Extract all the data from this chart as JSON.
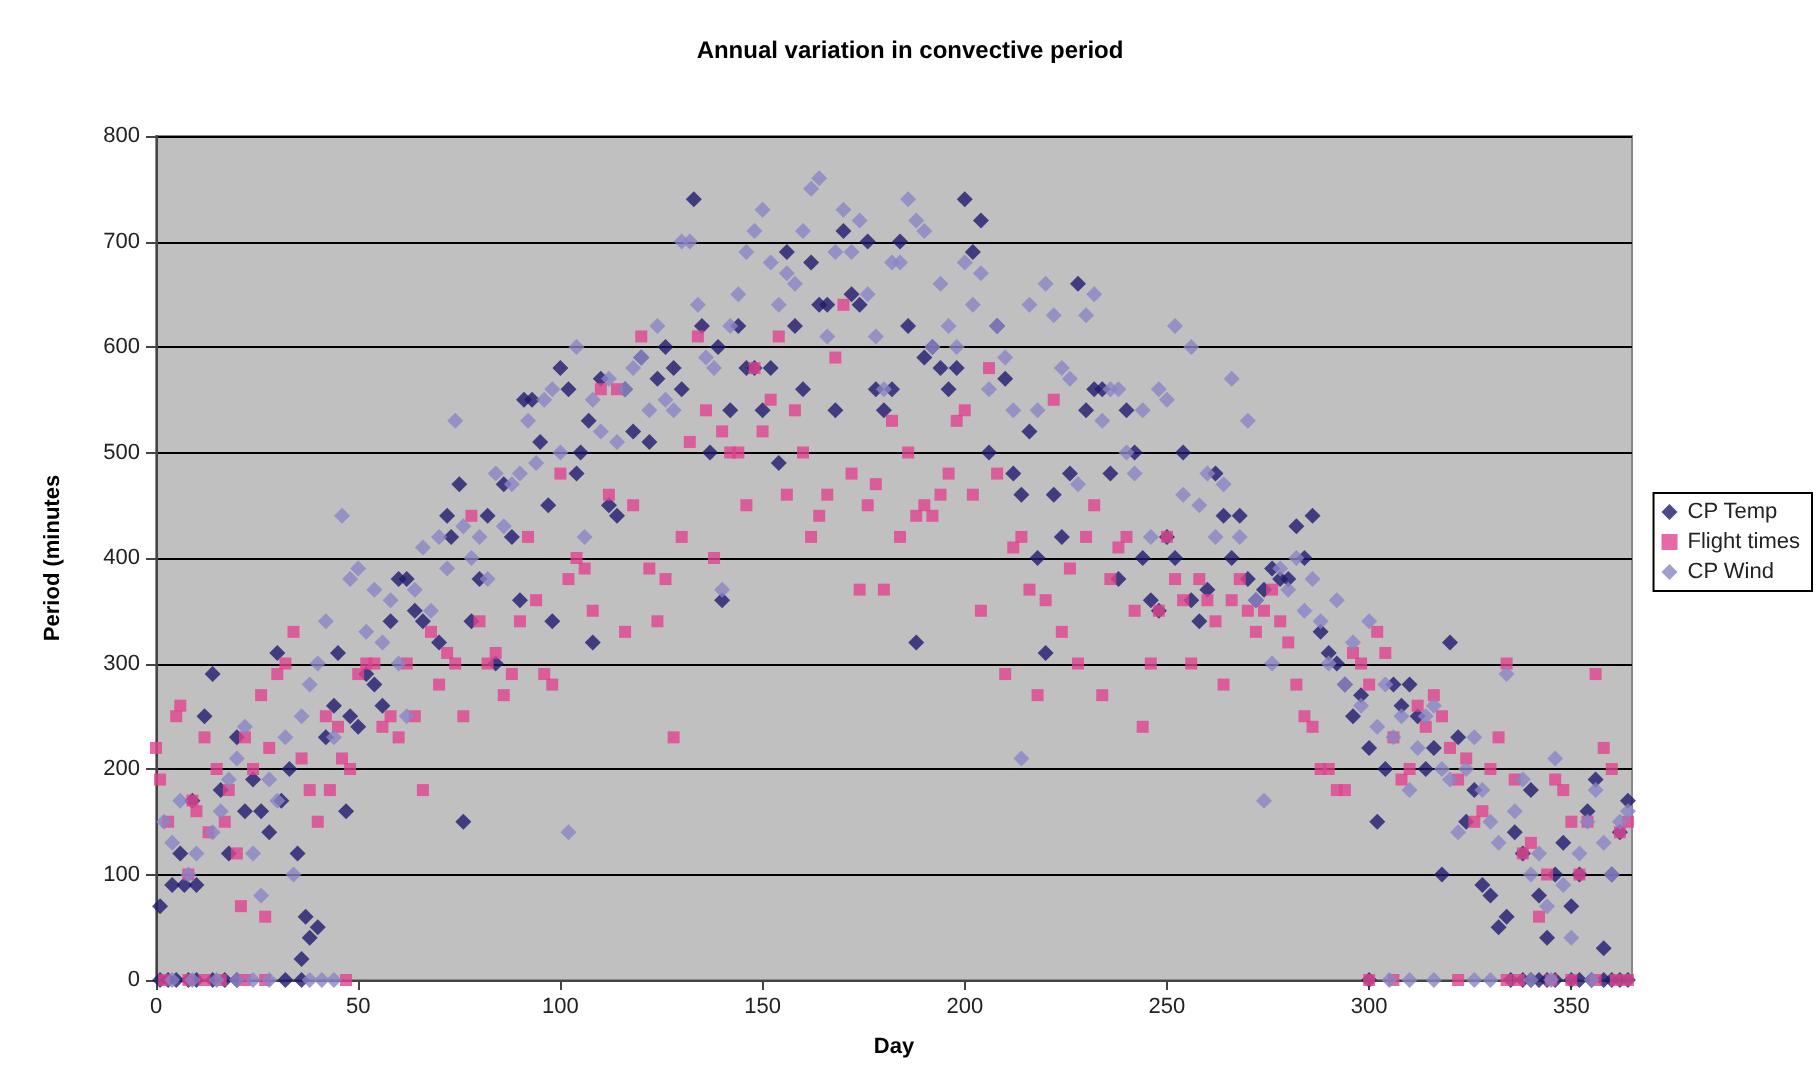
{
  "chart_data": {
    "type": "scatter",
    "title": "Annual variation in convective period",
    "xlabel": "Day",
    "ylabel": "Period (minutes",
    "xlim": [
      0,
      365
    ],
    "xticks": [
      0,
      50,
      100,
      150,
      200,
      250,
      300,
      350
    ],
    "ylim": [
      0,
      800
    ],
    "yticks": [
      0,
      100,
      200,
      300,
      400,
      500,
      600,
      700,
      800
    ],
    "grid": "y",
    "legend": "right",
    "series": [
      {
        "name": "CP Temp",
        "color": "#1f1a6e",
        "marker": "diamond",
        "x": [
          1,
          3,
          5,
          8,
          10,
          14,
          17,
          20,
          32,
          36,
          1,
          4,
          6,
          7,
          9,
          10,
          12,
          14,
          16,
          18,
          20,
          22,
          24,
          26,
          28,
          30,
          31,
          33,
          35,
          36,
          37,
          38,
          40,
          42,
          44,
          45,
          47,
          48,
          50,
          52,
          54,
          56,
          58,
          60,
          62,
          64,
          66,
          70,
          72,
          73,
          75,
          76,
          78,
          80,
          82,
          84,
          86,
          88,
          90,
          91,
          93,
          95,
          97,
          98,
          100,
          102,
          104,
          105,
          107,
          108,
          110,
          112,
          114,
          116,
          118,
          120,
          122,
          124,
          126,
          128,
          130,
          133,
          135,
          137,
          139,
          140,
          142,
          144,
          146,
          148,
          150,
          152,
          154,
          156,
          158,
          160,
          162,
          164,
          166,
          168,
          170,
          172,
          174,
          176,
          178,
          180,
          182,
          184,
          186,
          188,
          190,
          192,
          194,
          196,
          198,
          200,
          202,
          204,
          206,
          208,
          210,
          212,
          214,
          216,
          218,
          220,
          222,
          224,
          226,
          228,
          230,
          232,
          234,
          236,
          238,
          240,
          242,
          244,
          246,
          248,
          250,
          252,
          254,
          256,
          258,
          260,
          262,
          264,
          266,
          268,
          270,
          272,
          274,
          276,
          278,
          280,
          282,
          284,
          286,
          288,
          290,
          292,
          294,
          296,
          298,
          300,
          302,
          304,
          306,
          308,
          310,
          312,
          314,
          316,
          318,
          320,
          322,
          324,
          326,
          328,
          330,
          332,
          334,
          336,
          338,
          340,
          342,
          344,
          346,
          348,
          350,
          352,
          354,
          356,
          358,
          360,
          362,
          364,
          300,
          335,
          338,
          340,
          342,
          344,
          346,
          350,
          352,
          355,
          358,
          360,
          362,
          364
        ],
        "values": [
          0,
          0,
          0,
          0,
          0,
          0,
          0,
          0,
          0,
          0,
          70,
          90,
          120,
          90,
          170,
          90,
          250,
          290,
          180,
          120,
          230,
          160,
          190,
          160,
          140,
          310,
          170,
          200,
          120,
          20,
          60,
          40,
          50,
          230,
          260,
          310,
          160,
          250,
          240,
          290,
          280,
          260,
          340,
          380,
          380,
          350,
          340,
          320,
          440,
          420,
          470,
          150,
          340,
          380,
          440,
          300,
          470,
          420,
          360,
          550,
          550,
          510,
          450,
          340,
          580,
          560,
          480,
          500,
          530,
          320,
          570,
          450,
          440,
          560,
          520,
          590,
          510,
          570,
          600,
          580,
          560,
          740,
          620,
          500,
          600,
          360,
          540,
          620,
          580,
          580,
          540,
          580,
          490,
          690,
          620,
          560,
          680,
          640,
          640,
          540,
          710,
          650,
          640,
          700,
          560,
          540,
          560,
          700,
          620,
          320,
          590,
          600,
          580,
          560,
          580,
          740,
          690,
          720,
          500,
          620,
          570,
          480,
          460,
          520,
          400,
          310,
          460,
          420,
          480,
          660,
          540,
          560,
          560,
          480,
          380,
          540,
          500,
          400,
          360,
          350,
          420,
          400,
          500,
          360,
          340,
          370,
          480,
          440,
          400,
          440,
          380,
          360,
          370,
          390,
          380,
          380,
          430,
          400,
          440,
          330,
          310,
          300,
          280,
          250,
          270,
          220,
          150,
          200,
          280,
          260,
          280,
          250,
          200,
          220,
          100,
          320,
          230,
          150,
          180,
          90,
          80,
          50,
          60,
          140,
          120,
          180,
          80,
          40,
          100,
          130,
          70,
          100,
          160,
          190,
          30,
          100,
          140,
          170,
          0,
          0,
          0,
          0,
          0,
          0,
          0,
          0,
          0,
          0,
          0,
          0,
          0,
          0
        ]
      },
      {
        "name": "Flight times",
        "color": "#e0438f",
        "marker": "square",
        "x": [
          2,
          8,
          12,
          16,
          22,
          27,
          47,
          300,
          306,
          322,
          334,
          337,
          345,
          350,
          356,
          361,
          364,
          0,
          1,
          3,
          5,
          6,
          8,
          9,
          10,
          12,
          13,
          15,
          17,
          18,
          20,
          21,
          22,
          24,
          26,
          27,
          28,
          30,
          32,
          34,
          36,
          38,
          40,
          42,
          43,
          45,
          46,
          48,
          50,
          52,
          54,
          56,
          58,
          60,
          62,
          64,
          66,
          68,
          70,
          72,
          74,
          76,
          78,
          80,
          82,
          84,
          86,
          88,
          90,
          92,
          94,
          96,
          98,
          100,
          102,
          104,
          106,
          108,
          110,
          112,
          114,
          116,
          118,
          120,
          122,
          124,
          126,
          128,
          130,
          132,
          134,
          136,
          138,
          140,
          142,
          144,
          146,
          148,
          150,
          152,
          154,
          156,
          158,
          160,
          162,
          164,
          166,
          168,
          170,
          172,
          174,
          176,
          178,
          180,
          182,
          184,
          186,
          188,
          190,
          192,
          194,
          196,
          198,
          200,
          202,
          204,
          206,
          208,
          210,
          212,
          214,
          216,
          218,
          220,
          222,
          224,
          226,
          228,
          230,
          232,
          234,
          236,
          238,
          240,
          242,
          244,
          246,
          248,
          250,
          252,
          254,
          256,
          258,
          260,
          262,
          264,
          266,
          268,
          270,
          272,
          274,
          276,
          278,
          280,
          282,
          284,
          286,
          288,
          290,
          292,
          294,
          296,
          298,
          300,
          302,
          304,
          306,
          308,
          310,
          312,
          314,
          316,
          318,
          320,
          322,
          324,
          326,
          328,
          330,
          332,
          334,
          336,
          338,
          340,
          342,
          344,
          346,
          348,
          350,
          352,
          354,
          356,
          358,
          360,
          362,
          364
        ],
        "values": [
          0,
          0,
          0,
          0,
          0,
          0,
          0,
          0,
          0,
          0,
          0,
          0,
          0,
          0,
          0,
          0,
          0,
          220,
          190,
          150,
          250,
          260,
          100,
          170,
          160,
          230,
          140,
          200,
          150,
          180,
          120,
          70,
          230,
          200,
          270,
          60,
          220,
          290,
          300,
          330,
          210,
          180,
          150,
          250,
          180,
          240,
          210,
          200,
          290,
          300,
          300,
          240,
          250,
          230,
          300,
          250,
          180,
          330,
          280,
          310,
          300,
          250,
          440,
          340,
          300,
          310,
          270,
          290,
          340,
          420,
          360,
          290,
          280,
          480,
          380,
          400,
          390,
          350,
          560,
          460,
          560,
          330,
          450,
          610,
          390,
          340,
          380,
          230,
          420,
          510,
          610,
          540,
          400,
          520,
          500,
          500,
          450,
          580,
          520,
          550,
          610,
          460,
          540,
          500,
          420,
          440,
          460,
          590,
          640,
          480,
          370,
          450,
          470,
          370,
          530,
          420,
          500,
          440,
          450,
          440,
          460,
          480,
          530,
          540,
          460,
          350,
          580,
          480,
          290,
          410,
          420,
          370,
          270,
          360,
          550,
          330,
          390,
          300,
          420,
          450,
          270,
          380,
          410,
          420,
          350,
          240,
          300,
          350,
          420,
          380,
          360,
          300,
          380,
          360,
          340,
          280,
          360,
          380,
          350,
          330,
          350,
          370,
          340,
          320,
          280,
          250,
          240,
          200,
          200,
          180,
          180,
          310,
          300,
          280,
          330,
          310,
          230,
          190,
          200,
          260,
          240,
          270,
          250,
          220,
          190,
          210,
          150,
          160,
          200,
          230,
          300,
          190,
          120,
          130,
          60,
          100,
          190,
          180,
          150,
          100,
          150,
          290,
          220,
          200,
          140,
          150
        ]
      },
      {
        "name": "CP Wind",
        "color": "#8b85c4",
        "marker": "diamond",
        "x": [
          4,
          9,
          15,
          20,
          24,
          28,
          38,
          41,
          44,
          305,
          310,
          316,
          326,
          330,
          340,
          345,
          355,
          2,
          4,
          6,
          8,
          10,
          14,
          16,
          18,
          20,
          22,
          24,
          26,
          28,
          30,
          32,
          34,
          36,
          38,
          40,
          42,
          44,
          46,
          48,
          50,
          52,
          54,
          56,
          58,
          60,
          62,
          64,
          66,
          68,
          70,
          72,
          74,
          76,
          78,
          80,
          82,
          84,
          86,
          88,
          90,
          92,
          94,
          96,
          98,
          100,
          102,
          104,
          106,
          108,
          110,
          112,
          114,
          116,
          118,
          120,
          122,
          124,
          126,
          128,
          130,
          132,
          134,
          136,
          138,
          140,
          142,
          144,
          146,
          148,
          150,
          152,
          154,
          156,
          158,
          160,
          162,
          164,
          166,
          168,
          170,
          172,
          174,
          176,
          178,
          180,
          182,
          184,
          186,
          188,
          190,
          192,
          194,
          196,
          198,
          200,
          202,
          204,
          206,
          208,
          210,
          212,
          214,
          216,
          218,
          220,
          222,
          224,
          226,
          228,
          230,
          232,
          234,
          236,
          238,
          240,
          242,
          244,
          246,
          248,
          250,
          252,
          254,
          256,
          258,
          260,
          262,
          264,
          266,
          268,
          270,
          272,
          274,
          276,
          278,
          280,
          282,
          284,
          286,
          288,
          290,
          292,
          294,
          296,
          298,
          300,
          302,
          304,
          306,
          308,
          310,
          312,
          314,
          316,
          318,
          320,
          322,
          324,
          326,
          328,
          330,
          332,
          334,
          336,
          338,
          340,
          342,
          344,
          346,
          348,
          350,
          352,
          354,
          356,
          358,
          360,
          362,
          364
        ],
        "values": [
          0,
          0,
          0,
          0,
          0,
          0,
          0,
          0,
          0,
          0,
          0,
          0,
          0,
          0,
          0,
          0,
          0,
          150,
          130,
          170,
          100,
          120,
          140,
          160,
          190,
          210,
          240,
          120,
          80,
          190,
          170,
          230,
          100,
          250,
          280,
          300,
          340,
          230,
          440,
          380,
          390,
          330,
          370,
          320,
          360,
          300,
          250,
          370,
          410,
          350,
          420,
          390,
          530,
          430,
          400,
          420,
          380,
          480,
          430,
          470,
          480,
          530,
          490,
          550,
          560,
          500,
          140,
          600,
          420,
          550,
          520,
          570,
          510,
          560,
          580,
          590,
          540,
          620,
          550,
          540,
          700,
          700,
          640,
          590,
          580,
          370,
          620,
          650,
          690,
          710,
          730,
          680,
          640,
          670,
          660,
          710,
          750,
          760,
          610,
          690,
          730,
          690,
          720,
          650,
          610,
          560,
          680,
          680,
          740,
          720,
          710,
          600,
          660,
          620,
          600,
          680,
          640,
          670,
          560,
          620,
          590,
          540,
          210,
          640,
          540,
          660,
          630,
          580,
          570,
          470,
          630,
          650,
          530,
          560,
          560,
          500,
          480,
          540,
          420,
          560,
          550,
          620,
          460,
          600,
          450,
          480,
          420,
          470,
          570,
          420,
          530,
          360,
          170,
          300,
          390,
          370,
          400,
          350,
          380,
          340,
          300,
          360,
          280,
          320,
          260,
          340,
          240,
          280,
          230,
          250,
          180,
          220,
          250,
          260,
          200,
          190,
          140,
          200,
          230,
          180,
          150,
          130,
          290,
          160,
          190,
          100,
          120,
          70,
          210,
          90,
          40,
          120,
          150,
          180,
          130,
          100,
          150,
          160
        ]
      }
    ]
  }
}
